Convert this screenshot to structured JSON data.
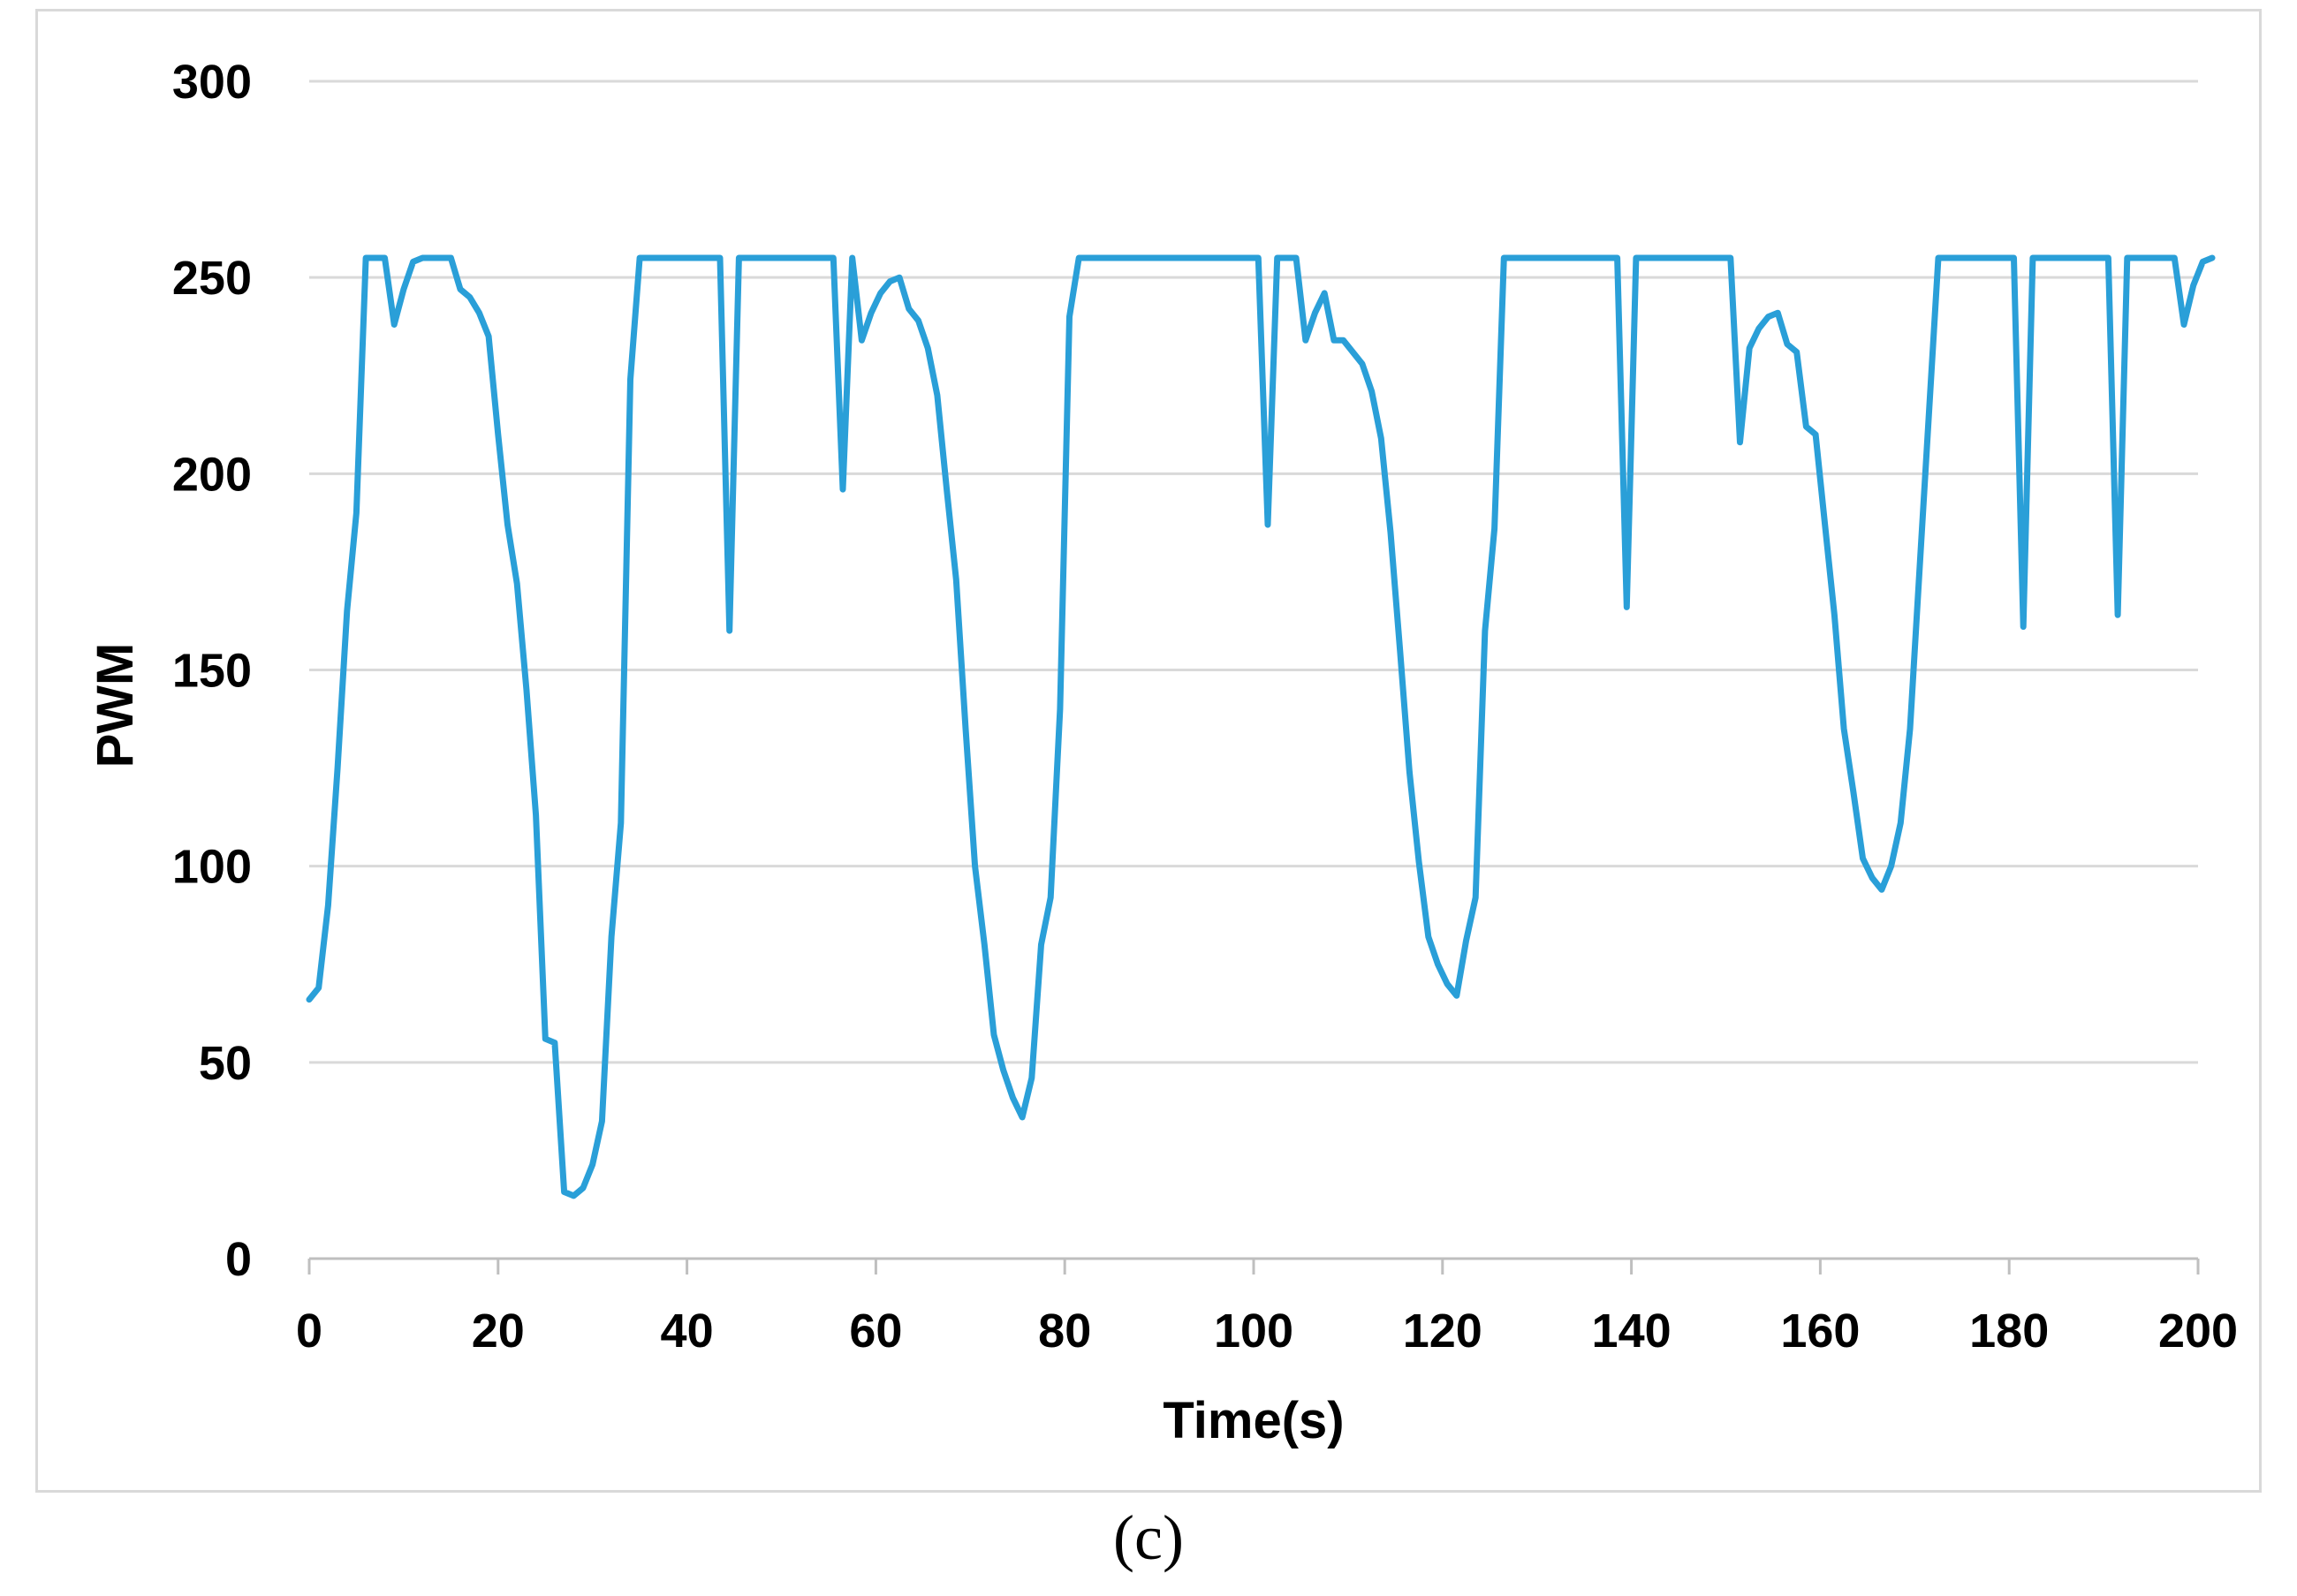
{
  "caption": "(c)",
  "chart_data": {
    "type": "line",
    "title": "",
    "xlabel": "Time(s)",
    "ylabel": "PWM",
    "xlim": [
      0,
      200
    ],
    "ylim": [
      0,
      300
    ],
    "xticks": [
      0,
      20,
      40,
      60,
      80,
      100,
      120,
      140,
      160,
      180,
      200
    ],
    "yticks": [
      0,
      50,
      100,
      150,
      200,
      250,
      300
    ],
    "grid": "horizontal",
    "legend": "none",
    "line_color": "#2a9fd8",
    "grid_color": "#d9d9d9",
    "axis_color": "#bfbfbf",
    "series": [
      {
        "points": [
          [
            0,
            66
          ],
          [
            1,
            69
          ],
          [
            2,
            90
          ],
          [
            3,
            125
          ],
          [
            4,
            165
          ],
          [
            5,
            190
          ],
          [
            6,
            255
          ],
          [
            7,
            255
          ],
          [
            8,
            255
          ],
          [
            9,
            238
          ],
          [
            10,
            247
          ],
          [
            11,
            254
          ],
          [
            12,
            255
          ],
          [
            13,
            255
          ],
          [
            14,
            255
          ],
          [
            15,
            255
          ],
          [
            16,
            247
          ],
          [
            17,
            245
          ],
          [
            18,
            241
          ],
          [
            19,
            235
          ],
          [
            20,
            210
          ],
          [
            21,
            187
          ],
          [
            22,
            172
          ],
          [
            23,
            145
          ],
          [
            24,
            113
          ],
          [
            25,
            56
          ],
          [
            26,
            55
          ],
          [
            27,
            17
          ],
          [
            28,
            16
          ],
          [
            29,
            18
          ],
          [
            30,
            24
          ],
          [
            31,
            35
          ],
          [
            32,
            82
          ],
          [
            33,
            111
          ],
          [
            34,
            224
          ],
          [
            35,
            255
          ],
          [
            36,
            255
          ],
          [
            38,
            255
          ],
          [
            40,
            255
          ],
          [
            42,
            255
          ],
          [
            43.5,
            255
          ],
          [
            44.5,
            160
          ],
          [
            45.5,
            255
          ],
          [
            48,
            255
          ],
          [
            50,
            255
          ],
          [
            52,
            255
          ],
          [
            54,
            255
          ],
          [
            55.5,
            255
          ],
          [
            56.5,
            196
          ],
          [
            57.5,
            255
          ],
          [
            58.5,
            234
          ],
          [
            59.5,
            241
          ],
          [
            60.5,
            246
          ],
          [
            61.5,
            249
          ],
          [
            62.5,
            250
          ],
          [
            63.5,
            242
          ],
          [
            64.5,
            239
          ],
          [
            65.5,
            232
          ],
          [
            66.5,
            220
          ],
          [
            67.5,
            196
          ],
          [
            68.5,
            173
          ],
          [
            69.5,
            135
          ],
          [
            70.5,
            100
          ],
          [
            71.5,
            80
          ],
          [
            72.5,
            57
          ],
          [
            73.5,
            48
          ],
          [
            74.5,
            41
          ],
          [
            75.5,
            36
          ],
          [
            76.5,
            46
          ],
          [
            77.5,
            80
          ],
          [
            78.5,
            92
          ],
          [
            79.5,
            140
          ],
          [
            80.5,
            240
          ],
          [
            81.5,
            255
          ],
          [
            82.5,
            255
          ],
          [
            85,
            255
          ],
          [
            90,
            255
          ],
          [
            95,
            255
          ],
          [
            100,
            255
          ],
          [
            100.5,
            255
          ],
          [
            101.5,
            187
          ],
          [
            102.5,
            255
          ],
          [
            104.5,
            255
          ],
          [
            105.5,
            234
          ],
          [
            106.5,
            241
          ],
          [
            107.5,
            246
          ],
          [
            108.5,
            234
          ],
          [
            109.5,
            234
          ],
          [
            110.5,
            231
          ],
          [
            111.5,
            228
          ],
          [
            112.5,
            221
          ],
          [
            113.5,
            209
          ],
          [
            114.5,
            185
          ],
          [
            115.5,
            155
          ],
          [
            116.5,
            124
          ],
          [
            117.5,
            101
          ],
          [
            118.5,
            82
          ],
          [
            119.5,
            75
          ],
          [
            120.5,
            70
          ],
          [
            121.5,
            67
          ],
          [
            122.5,
            81
          ],
          [
            123.5,
            92
          ],
          [
            124.5,
            160
          ],
          [
            125.5,
            186
          ],
          [
            126.5,
            255
          ],
          [
            127.5,
            255
          ],
          [
            130,
            255
          ],
          [
            135,
            255
          ],
          [
            138.5,
            255
          ],
          [
            139.5,
            166
          ],
          [
            140.5,
            255
          ],
          [
            145,
            255
          ],
          [
            150.5,
            255
          ],
          [
            151.5,
            208
          ],
          [
            152.5,
            232
          ],
          [
            153.5,
            237
          ],
          [
            154.5,
            240
          ],
          [
            155.5,
            241
          ],
          [
            156.5,
            233
          ],
          [
            157.5,
            231
          ],
          [
            158.5,
            212
          ],
          [
            159.5,
            210
          ],
          [
            160.5,
            187
          ],
          [
            161.5,
            164
          ],
          [
            162.5,
            135
          ],
          [
            163.5,
            119
          ],
          [
            164.5,
            102
          ],
          [
            165.5,
            97
          ],
          [
            166.5,
            94
          ],
          [
            167.5,
            100
          ],
          [
            168.5,
            111
          ],
          [
            169.5,
            135
          ],
          [
            170.5,
            175
          ],
          [
            171.5,
            215
          ],
          [
            172.5,
            255
          ],
          [
            175,
            255
          ],
          [
            180.5,
            255
          ],
          [
            181.5,
            161
          ],
          [
            182.5,
            255
          ],
          [
            185,
            255
          ],
          [
            190,
            255
          ],
          [
            190.5,
            255
          ],
          [
            191.5,
            164
          ],
          [
            192.5,
            255
          ],
          [
            195,
            255
          ],
          [
            197.5,
            255
          ],
          [
            198.5,
            238
          ],
          [
            199.5,
            248
          ],
          [
            200.5,
            254
          ],
          [
            201.5,
            255
          ]
        ]
      }
    ]
  }
}
